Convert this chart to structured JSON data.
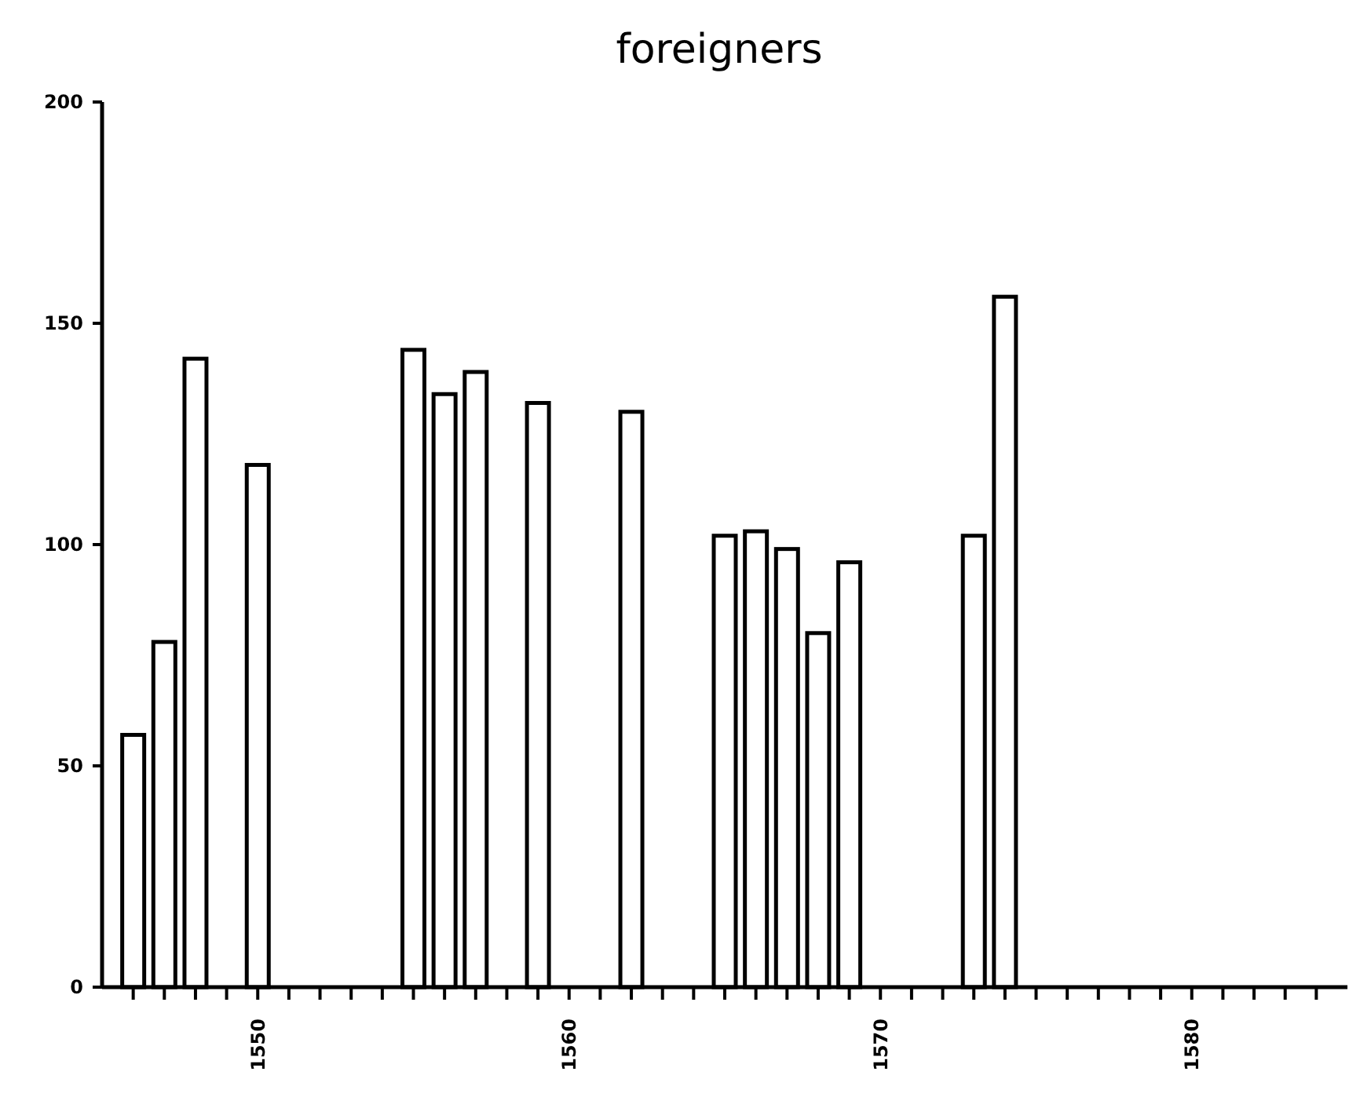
{
  "chart_data": {
    "type": "bar",
    "title": "foreigners",
    "color": "#000000",
    "x": [
      1546,
      1547,
      1548,
      1550,
      1555,
      1556,
      1557,
      1559,
      1562,
      1565,
      1566,
      1567,
      1568,
      1569,
      1573,
      1574
    ],
    "values": [
      57,
      78,
      142,
      118,
      144,
      134,
      139,
      132,
      130,
      102,
      103,
      99,
      80,
      96,
      102,
      156
    ],
    "xlim": [
      1545,
      1585
    ],
    "xticks": [
      {
        "value": 1546,
        "label": null
      },
      {
        "value": 1547,
        "label": null
      },
      {
        "value": 1548,
        "label": null
      },
      {
        "value": 1549,
        "label": null
      },
      1550,
      {
        "value": 1551,
        "label": null
      },
      {
        "value": 1552,
        "label": null
      },
      {
        "value": 1553,
        "label": null
      },
      {
        "value": 1554,
        "label": null
      },
      {
        "value": 1555,
        "label": null
      },
      {
        "value": 1556,
        "label": null
      },
      {
        "value": 1557,
        "label": null
      },
      {
        "value": 1558,
        "label": null
      },
      {
        "value": 1559,
        "label": null
      },
      1560,
      {
        "value": 1561,
        "label": null
      },
      {
        "value": 1562,
        "label": null
      },
      {
        "value": 1563,
        "label": null
      },
      {
        "value": 1564,
        "label": null
      },
      {
        "value": 1565,
        "label": null
      },
      {
        "value": 1566,
        "label": null
      },
      {
        "value": 1567,
        "label": null
      },
      {
        "value": 1568,
        "label": null
      },
      {
        "value": 1569,
        "label": null
      },
      1570,
      {
        "value": 1571,
        "label": null
      },
      {
        "value": 1572,
        "label": null
      },
      {
        "value": 1573,
        "label": null
      },
      {
        "value": 1574,
        "label": null
      },
      {
        "value": 1575,
        "label": null
      },
      {
        "value": 1576,
        "label": null
      },
      {
        "value": 1577,
        "label": null
      },
      {
        "value": 1578,
        "label": null
      },
      {
        "value": 1579,
        "label": null
      },
      1580,
      {
        "value": 1581,
        "label": null
      },
      {
        "value": 1582,
        "label": null
      },
      {
        "value": 1583,
        "label": null
      },
      {
        "value": 1584,
        "label": null
      }
    ],
    "ylim": [
      0,
      200
    ],
    "yticks": [
      0,
      50,
      100,
      150,
      200
    ],
    "grid": false
  }
}
